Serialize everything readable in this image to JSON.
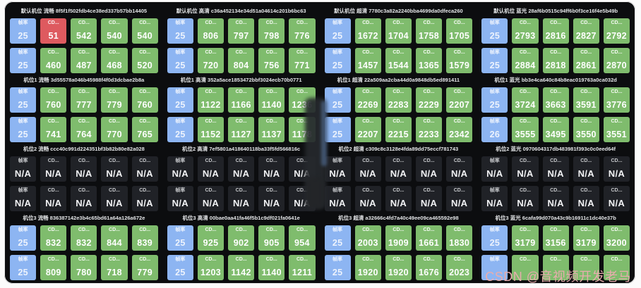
{
  "labels": {
    "frame_rate": "帧率",
    "cdn": "CD...",
    "na": "N/A"
  },
  "colors": {
    "b": "#8db5f2",
    "g": "#7fbc6d",
    "r": "#de5a5f",
    "n": "#202227",
    "panel_bg": "#0c0d0f",
    "watermark": "#e7adad"
  },
  "watermark": "CSDN @音视频开发老马",
  "panels": [
    {
      "title": "默认机位 流畅 8f5f1f502fdb4ce38ed337b57bb14405",
      "rows": [
        [
          [
            "b",
            "25"
          ],
          [
            "r",
            "51"
          ],
          [
            "g",
            "542"
          ],
          [
            "g",
            "540"
          ],
          [
            "g",
            "540"
          ]
        ],
        [
          [
            "b",
            "25"
          ],
          [
            "g",
            "460"
          ],
          [
            "g",
            "487"
          ],
          [
            "g",
            "468"
          ],
          [
            "g",
            "520"
          ]
        ]
      ]
    },
    {
      "title": "默认机位 高清 c36a452134e34d51a04614c201b6bc63",
      "rows": [
        [
          [
            "b",
            "25"
          ],
          [
            "g",
            "806"
          ],
          [
            "g",
            "797"
          ],
          [
            "g",
            "798"
          ],
          [
            "g",
            "776"
          ]
        ],
        [
          [
            "b",
            "25"
          ],
          [
            "g",
            "720"
          ],
          [
            "g",
            "804"
          ],
          [
            "g",
            "756"
          ],
          [
            "g",
            "771"
          ]
        ]
      ]
    },
    {
      "title": "默认机位 超清 7780c3a82a2240bba4699da0dfeca260",
      "rows": [
        [
          [
            "b",
            "25"
          ],
          [
            "g",
            "1672"
          ],
          [
            "g",
            "1704"
          ],
          [
            "g",
            "1758"
          ],
          [
            "g",
            "1705"
          ]
        ],
        [
          [
            "b",
            "25"
          ],
          [
            "g",
            "1457"
          ],
          [
            "g",
            "1544"
          ],
          [
            "g",
            "1365"
          ],
          [
            "g",
            "1579"
          ]
        ]
      ]
    },
    {
      "title": "默认机位 蓝光 28af6b0515c94ff6b0f3ce16f4e5b49b",
      "rows": [
        [
          [
            "b",
            "25"
          ],
          [
            "g",
            "2793"
          ],
          [
            "g",
            "2816"
          ],
          [
            "g",
            "2827"
          ],
          [
            "g",
            "2792"
          ]
        ],
        [
          [
            "b",
            "25"
          ],
          [
            "g",
            "2884"
          ],
          [
            "g",
            "2818"
          ],
          [
            "g",
            "2861"
          ],
          [
            "g",
            "2870"
          ]
        ]
      ]
    },
    {
      "title": "机位1 流畅 3d55578a046b45988f4f0d3dcbae2b8a",
      "rows": [
        [
          [
            "b",
            "25"
          ],
          [
            "g",
            "760"
          ],
          [
            "g",
            "777"
          ],
          [
            "g",
            "779"
          ],
          [
            "g",
            "760"
          ]
        ],
        [
          [
            "b",
            "25"
          ],
          [
            "g",
            "741"
          ],
          [
            "g",
            "764"
          ],
          [
            "g",
            "770"
          ],
          [
            "g",
            "765"
          ]
        ]
      ]
    },
    {
      "title": "机位1 高清 352a5ace1853472bbf3024ecb70b0771",
      "rows": [
        [
          [
            "b",
            "25"
          ],
          [
            "g",
            "1122"
          ],
          [
            "g",
            "1166"
          ],
          [
            "g",
            "1140"
          ],
          [
            "g",
            "1236"
          ]
        ],
        [
          [
            "b",
            "25"
          ],
          [
            "g",
            "1152"
          ],
          [
            "g",
            "1127"
          ],
          [
            "g",
            "1137"
          ],
          [
            "g",
            "1178"
          ]
        ]
      ]
    },
    {
      "title": "机位1 超清 22a509aa2cba44d0a9848db5ed891411",
      "rows": [
        [
          [
            "b",
            "25"
          ],
          [
            "g",
            "2269"
          ],
          [
            "g",
            "2283"
          ],
          [
            "g",
            "2229"
          ],
          [
            "g",
            "2207"
          ]
        ],
        [
          [
            "b",
            "25"
          ],
          [
            "g",
            "2207"
          ],
          [
            "g",
            "2215"
          ],
          [
            "g",
            "2233"
          ],
          [
            "g",
            "2342"
          ]
        ]
      ]
    },
    {
      "title": "机位1 蓝光 bb3e4ca640c84b8eac019763a0ca032d",
      "rows": [
        [
          [
            "b",
            "25"
          ],
          [
            "g",
            "3724"
          ],
          [
            "g",
            "3663"
          ],
          [
            "g",
            "3591"
          ],
          [
            "g",
            "3776"
          ]
        ],
        [
          [
            "b",
            "26"
          ],
          [
            "g",
            "3555"
          ],
          [
            "g",
            "3495"
          ],
          [
            "g",
            "3550"
          ],
          [
            "g",
            "3551"
          ]
        ]
      ]
    },
    {
      "title": "机位2 流畅 ccc40c991d224351bf3b82b80e82a028",
      "rows": [
        [
          [
            "n",
            "N/A"
          ],
          [
            "n",
            "N/A"
          ],
          [
            "n",
            "N/A"
          ],
          [
            "n",
            "N/A"
          ],
          [
            "n",
            "N/A"
          ]
        ],
        [
          [
            "n",
            "N/A"
          ],
          [
            "n",
            "N/A"
          ],
          [
            "n",
            "N/A"
          ],
          [
            "n",
            "N/A"
          ],
          [
            "n",
            "N/A"
          ]
        ]
      ]
    },
    {
      "title": "机位2 高清 7ef5801a418640118ba33f5fd566816c",
      "rows": [
        [
          [
            "n",
            "N/A"
          ],
          [
            "n",
            "N/A"
          ],
          [
            "n",
            "N/A"
          ],
          [
            "n",
            "N/A"
          ],
          [
            "n",
            "N/A"
          ]
        ],
        [
          [
            "n",
            "N/A"
          ],
          [
            "n",
            "N/A"
          ],
          [
            "n",
            "N/A"
          ],
          [
            "n",
            "N/A"
          ],
          [
            "n",
            "N/A"
          ]
        ]
      ]
    },
    {
      "title": "机位2 超清 c309c8c3128e4fda89dd75eccf781743",
      "rows": [
        [
          [
            "n",
            "N/A"
          ],
          [
            "n",
            "N/A"
          ],
          [
            "n",
            "N/A"
          ],
          [
            "n",
            "N/A"
          ],
          [
            "n",
            "N/A"
          ]
        ],
        [
          [
            "n",
            "N/A"
          ],
          [
            "n",
            "N/A"
          ],
          [
            "n",
            "N/A"
          ],
          [
            "n",
            "N/A"
          ],
          [
            "n",
            "N/A"
          ]
        ]
      ]
    },
    {
      "title": "机位2 蓝光 0970604317db483981f393c0c0eed64f",
      "rows": [
        [
          [
            "n",
            "N/A"
          ],
          [
            "n",
            "N/A"
          ],
          [
            "n",
            "N/A"
          ],
          [
            "n",
            "N/A"
          ],
          [
            "n",
            "N/A"
          ]
        ],
        [
          [
            "n",
            "N/A"
          ],
          [
            "n",
            "N/A"
          ],
          [
            "n",
            "N/A"
          ],
          [
            "n",
            "N/A"
          ],
          [
            "n",
            "N/A"
          ]
        ]
      ]
    },
    {
      "title": "机位3 流畅 836387142e3b4c65bd61a64a126a672e",
      "rows": [
        [
          [
            "b",
            "25"
          ],
          [
            "g",
            "832"
          ],
          [
            "g",
            "832"
          ],
          [
            "g",
            "844"
          ],
          [
            "g",
            "839"
          ]
        ],
        [
          [
            "b",
            "25"
          ],
          [
            "g",
            "809"
          ],
          [
            "g",
            "780"
          ],
          [
            "g",
            "718"
          ],
          [
            "g",
            "779"
          ]
        ]
      ]
    },
    {
      "title": "机位3 高清 00bae0aa41fa46f5b1c9df021fa0641e",
      "rows": [
        [
          [
            "b",
            "25"
          ],
          [
            "g",
            "925"
          ],
          [
            "g",
            "902"
          ],
          [
            "g",
            "905"
          ],
          [
            "g",
            "954"
          ]
        ],
        [
          [
            "b",
            "25"
          ],
          [
            "g",
            "1203"
          ],
          [
            "g",
            "1142"
          ],
          [
            "g",
            "1140"
          ],
          [
            "g",
            "1211"
          ]
        ]
      ]
    },
    {
      "title": "机位3 超清 a32666c4fd7a40c49ee09ca465592e98",
      "rows": [
        [
          [
            "b",
            "25"
          ],
          [
            "g",
            "2003"
          ],
          [
            "g",
            "1909"
          ],
          [
            "g",
            "1661"
          ],
          [
            "g",
            "1830"
          ]
        ],
        [
          [
            "b",
            "25"
          ],
          [
            "g",
            "1920"
          ],
          [
            "g",
            "1920"
          ],
          [
            "g",
            "1676"
          ],
          [
            "g",
            "2023"
          ]
        ]
      ]
    },
    {
      "title": "机位3 蓝光 6cafa99d070a43c9b16911c1dc40e37b",
      "rows": [
        [
          [
            "b",
            "25"
          ],
          [
            "g",
            "3179"
          ],
          [
            "g",
            "3156"
          ],
          [
            "g",
            "3179"
          ],
          [
            "g",
            "3200"
          ]
        ],
        [
          [
            "b",
            ""
          ],
          [
            "g",
            ""
          ],
          [
            "g",
            ""
          ],
          [
            "g",
            ""
          ],
          [
            "g",
            ""
          ]
        ]
      ]
    }
  ]
}
